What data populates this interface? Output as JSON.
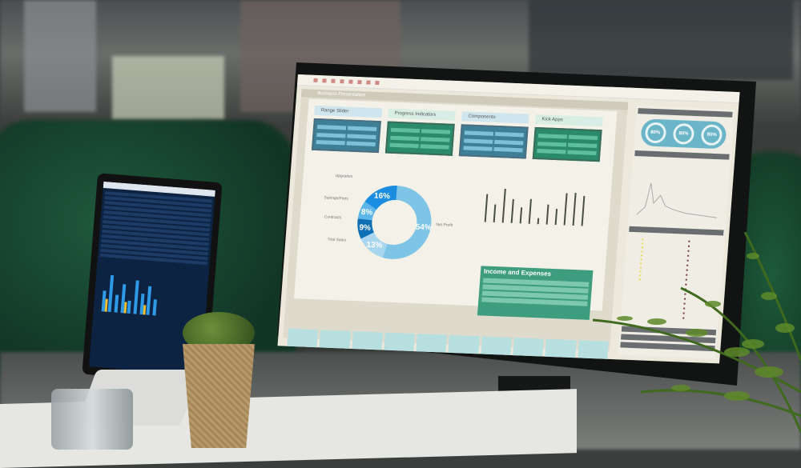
{
  "screen": {
    "document_title": "Business Presentation",
    "cards": [
      {
        "label": "Range Slider",
        "tone": "blue"
      },
      {
        "label": "Progress Indicators",
        "tone": "green"
      },
      {
        "label": "Components",
        "tone": "blue"
      },
      {
        "label": "Kick Apps",
        "tone": "green"
      }
    ],
    "donut": {
      "labels": [
        "Upgrades",
        "Savings/Fees",
        "Contracts",
        "Trial Sales",
        "Net Profit"
      ],
      "slices": [
        {
          "value": 16,
          "label": "16%",
          "color": "#1a8de0"
        },
        {
          "value": 8,
          "label": "8%",
          "color": "#5cb6ea"
        },
        {
          "value": 9,
          "label": "9%",
          "color": "#0f6fb6"
        },
        {
          "value": 13,
          "label": "13%",
          "color": "#a8d6ee"
        },
        {
          "value": 54,
          "label": "54%",
          "color": "#7ec4e6"
        }
      ]
    },
    "bar_levels": [
      0.7,
      0.45,
      0.85,
      0.6,
      0.4,
      0.62,
      0.15,
      0.5,
      0.4,
      0.8,
      0.82,
      0.75
    ],
    "income_title": "Income and Expenses",
    "gauges": [
      "80%",
      "80%",
      "80%"
    ]
  },
  "colors": {
    "accent_blue": "#1a8de0",
    "accent_green": "#2b8a6a",
    "couch": "#1f5a3c"
  }
}
